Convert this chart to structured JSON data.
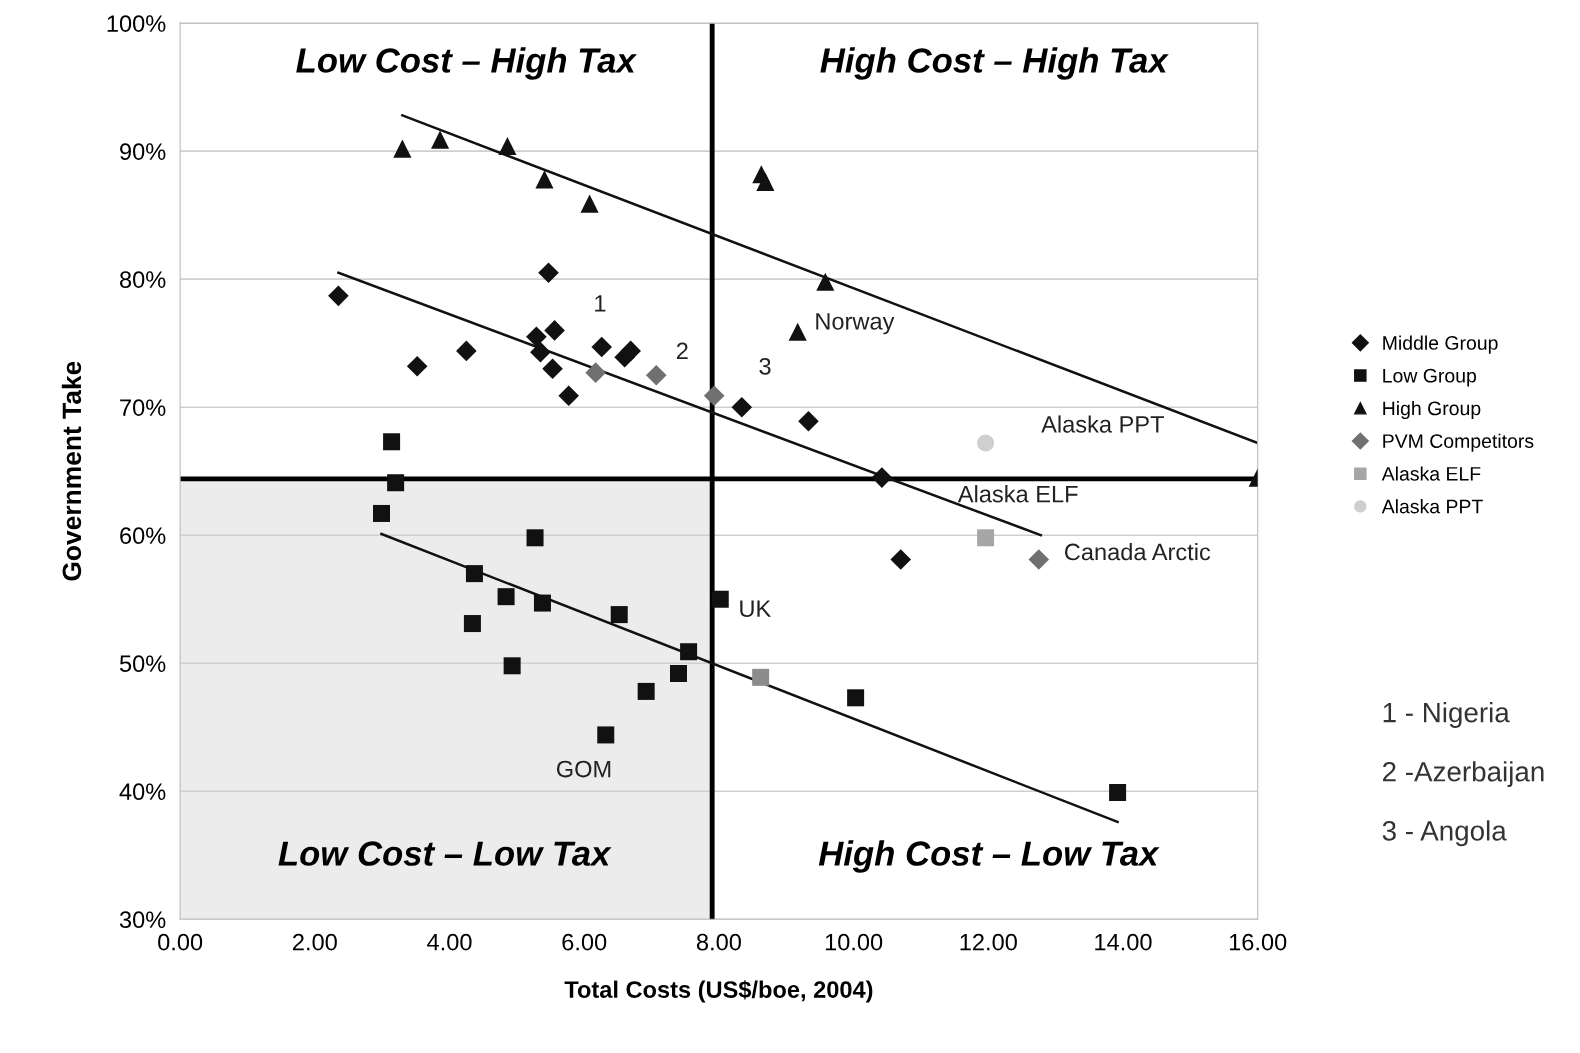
{
  "chart_data": {
    "type": "scatter",
    "xlabel": "Total Costs (US$/boe, 2004)",
    "ylabel": "Government Take",
    "xlim": [
      0,
      16
    ],
    "ylim": [
      30,
      100
    ],
    "xticks": [
      {
        "value": 0,
        "label": "0.00"
      },
      {
        "value": 2,
        "label": "2.00"
      },
      {
        "value": 4,
        "label": "4.00"
      },
      {
        "value": 6,
        "label": "6.00"
      },
      {
        "value": 8,
        "label": "8.00"
      },
      {
        "value": 10,
        "label": "10.00"
      },
      {
        "value": 12,
        "label": "12.00"
      },
      {
        "value": 14,
        "label": "14.00"
      },
      {
        "value": 16,
        "label": "16.00"
      }
    ],
    "yticks": [
      {
        "value": 30,
        "label": "30%"
      },
      {
        "value": 40,
        "label": "40%"
      },
      {
        "value": 50,
        "label": "50%"
      },
      {
        "value": 60,
        "label": "60%"
      },
      {
        "value": 70,
        "label": "70%"
      },
      {
        "value": 80,
        "label": "80%"
      },
      {
        "value": 90,
        "label": "90%"
      },
      {
        "value": 100,
        "label": "100%"
      }
    ],
    "grid": "y",
    "legend": "right",
    "series": [
      {
        "name": "Middle Group",
        "color": "#111111",
        "marker": "diamond",
        "x": [
          2.35,
          3.52,
          4.25,
          5.47,
          5.29,
          5.56,
          5.35,
          5.53,
          5.77,
          6.26,
          6.69,
          6.6,
          8.34,
          9.33,
          10.42,
          10.7
        ],
        "values": [
          78.7,
          73.2,
          74.4,
          80.5,
          75.5,
          76.0,
          74.3,
          73.0,
          70.9,
          74.7,
          74.4,
          73.9,
          70.0,
          68.9,
          64.5,
          58.1
        ]
      },
      {
        "name": "Low Group",
        "color": "#111111",
        "marker": "square",
        "x": [
          3.14,
          3.2,
          2.99,
          5.27,
          4.37,
          4.84,
          5.38,
          4.34,
          4.93,
          6.52,
          7.55,
          7.4,
          6.92,
          6.32,
          8.02,
          10.03,
          13.92,
          8.62
        ],
        "values": [
          67.3,
          64.1,
          61.7,
          59.8,
          57.0,
          55.2,
          54.7,
          53.1,
          49.8,
          53.8,
          50.9,
          49.2,
          47.8,
          44.4,
          55.0,
          47.3,
          39.9,
          48.9
        ],
        "colors": [
          "#111111",
          "#111111",
          "#111111",
          "#111111",
          "#111111",
          "#111111",
          "#111111",
          "#111111",
          "#111111",
          "#111111",
          "#111111",
          "#111111",
          "#111111",
          "#111111",
          "#111111",
          "#111111",
          "#111111",
          "#8c8c8c"
        ]
      },
      {
        "name": "High Group",
        "color": "#111111",
        "marker": "triangle",
        "x": [
          3.3,
          3.86,
          4.86,
          5.41,
          6.08,
          8.63,
          8.69,
          9.58,
          9.17,
          16.0
        ],
        "values": [
          90.2,
          90.9,
          90.4,
          87.8,
          85.9,
          88.2,
          87.6,
          79.8,
          75.9,
          64.5
        ]
      },
      {
        "name": "PVM Competitors",
        "color": "#707070",
        "marker": "diamond",
        "x": [
          6.17,
          7.07,
          7.93,
          12.75
        ],
        "values": [
          72.7,
          72.5,
          70.9,
          58.1
        ]
      },
      {
        "name": "Alaska ELF",
        "color": "#a6a6a6",
        "marker": "square",
        "x": [
          11.96
        ],
        "values": [
          59.8
        ]
      },
      {
        "name": "Alaska PPT",
        "color": "#cfcfcf",
        "marker": "circle",
        "x": [
          11.96
        ],
        "values": [
          67.2
        ]
      },
      {
        "type": "line",
        "color": "#111111",
        "x": [
          3.3,
          16.0
        ],
        "values": [
          92.8,
          67.2
        ]
      },
      {
        "type": "line",
        "color": "#111111",
        "x": [
          2.35,
          12.78
        ],
        "values": [
          80.5,
          60.0
        ]
      },
      {
        "type": "line",
        "color": "#111111",
        "x": [
          2.99,
          13.92
        ],
        "values": [
          60.1,
          37.6
        ]
      }
    ],
    "ref_lines": [
      {
        "axis": "x",
        "value": 7.9,
        "color": "#000000"
      },
      {
        "axis": "y",
        "value": 64.4,
        "color": "#000000"
      }
    ],
    "bands": [
      {
        "axis": "x",
        "from": 0,
        "to": 7.9,
        "color": "#ececec"
      }
    ],
    "annotations": [
      "Low Cost – High Tax",
      "High Cost – High Tax",
      "Low Cost – Low Tax",
      "High Cost – Low Tax",
      {
        "text": "Norway",
        "x": 9.17,
        "y": 75.9
      },
      {
        "text": "1",
        "x": 6.26,
        "y": 74.7
      },
      {
        "text": "2",
        "x": 7.07,
        "y": 72.5
      },
      {
        "text": "3",
        "x": 8.34,
        "y": 70.0
      },
      {
        "text": "Alaska PPT",
        "x": 11.96,
        "y": 67.2
      },
      {
        "text": "Alaska ELF",
        "x": 11.96,
        "y": 59.8
      },
      {
        "text": "Canada Arctic",
        "x": 12.75,
        "y": 58.1
      },
      {
        "text": "UK",
        "x": 8.62,
        "y": 48.9
      },
      {
        "text": "GOM",
        "x": 6.32,
        "y": 44.4
      },
      "1 - Nigeria",
      "2 -Azerbaijan",
      "3 - Angola"
    ]
  }
}
